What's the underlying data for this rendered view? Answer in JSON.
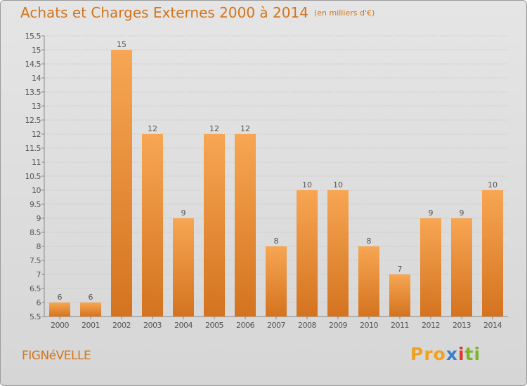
{
  "title": "Achats et Charges Externes 2000 à 2014",
  "title_unit": "(en milliers d'€)",
  "commune": "FIGNéVELLE",
  "brand": [
    "Pro",
    "x",
    "i",
    "ti"
  ],
  "colors": {
    "bar_top": "#f7a653",
    "bar_bottom": "#d4731f",
    "title": "#d2751d",
    "grid": "#c9c9c9"
  },
  "chart_data": {
    "type": "bar",
    "title": "Achats et Charges Externes 2000 à 2014",
    "subtitle": "(en milliers d'€)",
    "categories": [
      "2000",
      "2001",
      "2002",
      "2003",
      "2004",
      "2005",
      "2006",
      "2007",
      "2008",
      "2009",
      "2010",
      "2011",
      "2012",
      "2013",
      "2014"
    ],
    "values": [
      6,
      6,
      15,
      12,
      9,
      12,
      12,
      8,
      10,
      10,
      8,
      7,
      9,
      9,
      10
    ],
    "ylim": [
      5.5,
      15.5
    ],
    "yticks": [
      "5.5",
      "6",
      "6.5",
      "7",
      "7.5",
      "8",
      "8.5",
      "9",
      "9.5",
      "10",
      "10.5",
      "11",
      "11.5",
      "12",
      "12.5",
      "13",
      "13.5",
      "14",
      "14.5",
      "15",
      "15.5"
    ],
    "grid": true,
    "data_labels": true
  }
}
